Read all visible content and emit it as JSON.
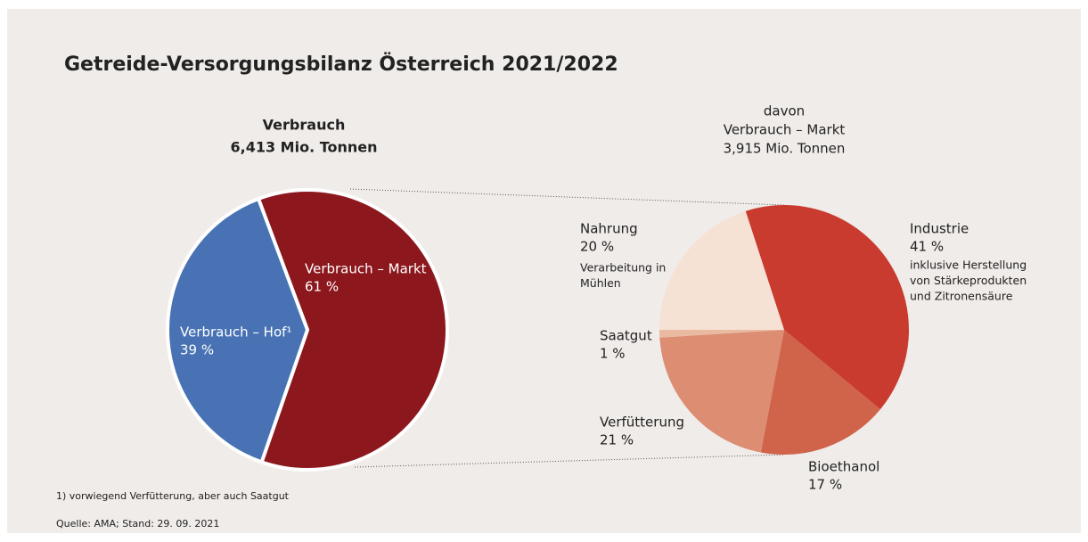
{
  "title": "Getreide-Versorgungsbilanz Österreich 2021/2022",
  "footnote": "1) vorwiegend Verfütterung, aber auch Saatgut",
  "source": "Quelle: AMA; Stand: 29. 09. 2021",
  "chart_data": [
    {
      "type": "pie",
      "title": "Verbrauch",
      "subtitle": "6,413 Mio. Tonnen",
      "categories": [
        "Verbrauch – Markt",
        "Verbrauch – Hof¹"
      ],
      "values": [
        61,
        39
      ],
      "value_labels": [
        "61 %",
        "39 %"
      ],
      "colors": [
        "#8c181e",
        "#4872b4"
      ]
    },
    {
      "type": "pie",
      "title": [
        "davon",
        "Verbrauch – Markt",
        "3,915 Mio. Tonnen"
      ],
      "categories": [
        "Industrie",
        "Bioethanol",
        "Verfütterung",
        "Saatgut",
        "Nahrung"
      ],
      "values": [
        41,
        17,
        21,
        1,
        20
      ],
      "value_labels": [
        "41 %",
        "17 %",
        "21 %",
        "1 %",
        "20 %"
      ],
      "notes": [
        [
          "inklusive Herstellung",
          "von Stärkeprodukten",
          "und Zitronensäure"
        ],
        null,
        null,
        null,
        [
          "Verarbeitung in",
          "Mühlen"
        ]
      ],
      "colors": [
        "#c93b2f",
        "#d0644b",
        "#dc8d72",
        "#e9b9a0",
        "#f6e1d5"
      ]
    }
  ]
}
